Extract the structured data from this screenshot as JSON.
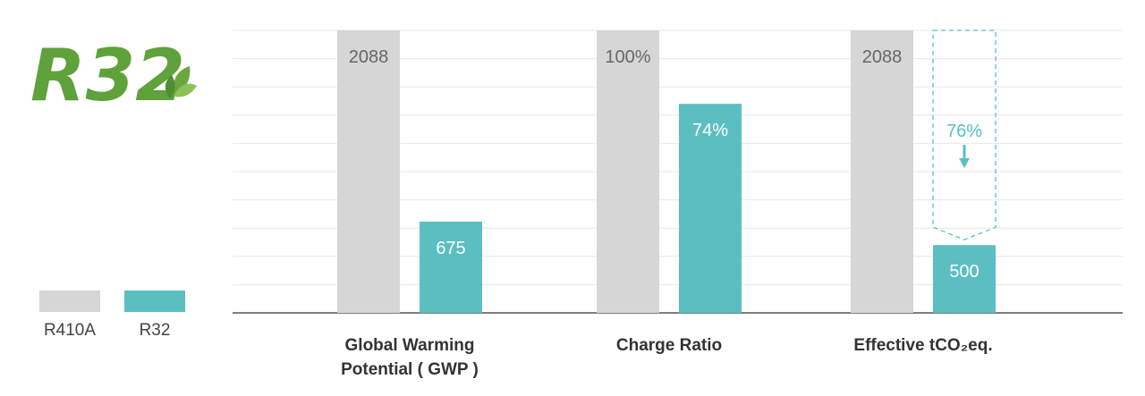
{
  "logo": {
    "text": "R32"
  },
  "legend": [
    {
      "label": "R410A",
      "color": "#d6d6d6"
    },
    {
      "label": "R32",
      "color": "#5bbfc2"
    }
  ],
  "colors": {
    "r410a": "#d6d6d6",
    "r32": "#5bbfc2",
    "grid": "#e8e8e8",
    "axis": "#555555",
    "r410a_text": "#666666",
    "r32_text": "#ffffff",
    "reduction_text": "#5bbfc2",
    "logo_green": "#5fa13a"
  },
  "chart_data": {
    "type": "bar",
    "title": "",
    "grid": true,
    "legend_position": "bottom-left",
    "ylim": [
      0,
      100
    ],
    "categories": [
      {
        "label_lines": [
          "Global Warming",
          "Potential ( GWP )"
        ]
      },
      {
        "label_lines": [
          "Charge Ratio"
        ]
      },
      {
        "label_lines": [
          "Effective tCO₂eq."
        ]
      }
    ],
    "series": [
      {
        "name": "R410A",
        "values": [
          100,
          100,
          100
        ],
        "labels": [
          "2088",
          "100%",
          "2088"
        ]
      },
      {
        "name": "R32",
        "values": [
          32.3,
          74,
          24
        ],
        "labels": [
          "675",
          "74%",
          "500"
        ]
      }
    ],
    "annotations": [
      {
        "category_index": 2,
        "text": "76%",
        "meaning": "reduction",
        "style": "dashed-outline-with-down-arrow"
      }
    ]
  }
}
